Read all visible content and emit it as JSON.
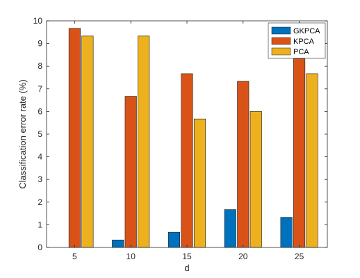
{
  "chart_data": {
    "type": "bar",
    "title": "",
    "xlabel": "d",
    "ylabel": "Classification error rate (%)",
    "categories": [
      "5",
      "10",
      "15",
      "20",
      "25"
    ],
    "series": [
      {
        "name": "GKPCA",
        "color": "#0072BD",
        "values": [
          0,
          0.33,
          0.67,
          1.67,
          1.33
        ]
      },
      {
        "name": "KPCA",
        "color": "#D95319",
        "values": [
          9.67,
          6.67,
          7.67,
          7.33,
          8.33
        ]
      },
      {
        "name": "PCA",
        "color": "#EDB120",
        "values": [
          9.33,
          9.33,
          5.67,
          6.0,
          7.67
        ]
      }
    ],
    "ylim": [
      0,
      10
    ],
    "yticks": [
      0,
      1,
      2,
      3,
      4,
      5,
      6,
      7,
      8,
      9,
      10
    ],
    "grid": false,
    "legend_position": "top-right"
  }
}
